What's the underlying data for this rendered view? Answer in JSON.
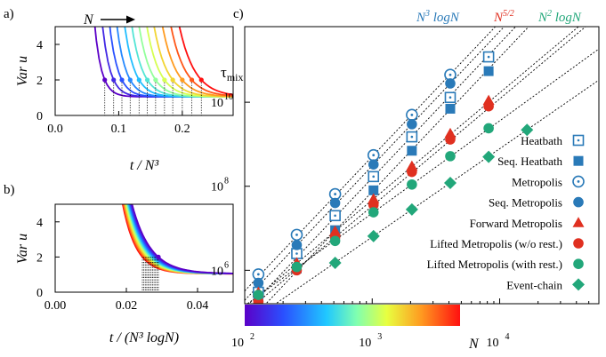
{
  "chart_data": [
    {
      "panel": "a)",
      "type": "line",
      "xlabel": "t / N³",
      "ylabel": "Var u",
      "xlim": [
        0,
        0.28
      ],
      "ylim": [
        0,
        5
      ],
      "xticks": [
        "0.0",
        "0.1",
        "0.2"
      ],
      "yticks": [
        "0",
        "2",
        "4"
      ],
      "annotation": "N",
      "curve_count": 12,
      "marked_times": [
        0.078,
        0.092,
        0.105,
        0.118,
        0.132,
        0.145,
        0.158,
        0.172,
        0.185,
        0.2,
        0.215,
        0.23
      ],
      "grid": false
    },
    {
      "panel": "b)",
      "type": "line",
      "xlabel": "t / (N³ logN)",
      "ylabel": "Var u",
      "xlim": [
        0,
        0.05
      ],
      "ylim": [
        0,
        5
      ],
      "xticks": [
        "0.00",
        "0.02",
        "0.04"
      ],
      "yticks": [
        "0",
        "2",
        "4"
      ],
      "curve_count": 12,
      "collapse_time_range": [
        0.0245,
        0.029
      ],
      "grid": false
    },
    {
      "panel": "c)",
      "type": "scatter",
      "ylabel": "τmix",
      "xlabel": "N",
      "xscale": "log",
      "yscale": "log",
      "xlim": [
        100,
        60000
      ],
      "ylim": [
        160000,
        630000000000
      ],
      "xticks": [
        {
          "label": "10",
          "sup": "2",
          "value": 100
        },
        {
          "label": "10",
          "sup": "3",
          "value": 1000
        },
        {
          "label": "10",
          "sup": "4",
          "value": 10000
        }
      ],
      "yticks": [
        {
          "label": "10",
          "sup": "6",
          "value": 1000000
        },
        {
          "label": "10",
          "sup": "8",
          "value": 100000000
        },
        {
          "label": "10",
          "sup": "10",
          "value": 10000000000
        }
      ],
      "scaling_labels": [
        {
          "base": "N",
          "sup": "3",
          "suffix": " logN",
          "color": "#2a7ab8"
        },
        {
          "base": "N",
          "sup": "5/2",
          "suffix": "",
          "color": "#e03020"
        },
        {
          "base": "N",
          "sup": "2",
          "suffix": " logN",
          "color": "#22a77a"
        }
      ],
      "colorbar": "N",
      "series": [
        {
          "name": "Heatbath",
          "marker": "square-dot",
          "color": "#2a7ab8",
          "x": [
            128,
            256,
            512,
            1024,
            2048,
            4096,
            8192
          ],
          "y": [
            300000,
            2500000,
            20000000,
            170000000,
            1500000000,
            13000000000,
            120000000000
          ]
        },
        {
          "name": "Seq. Heatbath",
          "marker": "square",
          "color": "#2a7ab8",
          "x": [
            128,
            256,
            512,
            1024,
            2048,
            4096,
            8192
          ],
          "y": [
            190000,
            1100000,
            9000000,
            80000000,
            700000000,
            7000000000,
            55000000000
          ]
        },
        {
          "name": "Metropolis",
          "marker": "circle-dot",
          "color": "#2a7ab8",
          "x": [
            128,
            256,
            512,
            1024,
            2048,
            4096
          ],
          "y": [
            800000,
            7000000,
            65000000,
            550000000,
            5000000000,
            45000000000
          ]
        },
        {
          "name": "Seq. Metropolis",
          "marker": "circle",
          "color": "#2a7ab8",
          "x": [
            128,
            256,
            512,
            1024,
            2048,
            4096
          ],
          "y": [
            500000,
            4000000,
            40000000,
            330000000,
            3000000000,
            28000000000
          ]
        },
        {
          "name": "Forward Metropolis",
          "marker": "triangle",
          "color": "#e03020",
          "x": [
            128,
            256,
            512,
            1024,
            2048,
            4096,
            8192
          ],
          "y": [
            300000,
            1500000,
            8500000,
            50000000,
            300000000,
            1800000000,
            11000000000
          ]
        },
        {
          "name": "Lifted Metropolis (w/o rest.)",
          "marker": "circle",
          "color": "#e03020",
          "x": [
            128,
            256,
            512,
            1024,
            2048,
            4096,
            8192
          ],
          "y": [
            180000,
            1000000,
            6000000,
            36000000,
            220000000,
            1300000000,
            8000000000
          ]
        },
        {
          "name": "Lifted Metropolis (with rest.)",
          "marker": "circle",
          "color": "#22a77a",
          "x": [
            128,
            256,
            512,
            1024,
            2048,
            4096,
            8192
          ],
          "y": [
            260000,
            1200000,
            5000000,
            24000000,
            110000000,
            520000000,
            2400000000
          ]
        },
        {
          "name": "Event-chain",
          "marker": "diamond",
          "color": "#22a77a",
          "x": [
            512,
            1024,
            2048,
            4096,
            8192,
            16384
          ],
          "y": [
            1500000,
            6500000,
            28000000,
            120000000,
            500000000,
            2200000000
          ]
        }
      ],
      "legend_position": "bottom-right",
      "grid": false
    }
  ]
}
